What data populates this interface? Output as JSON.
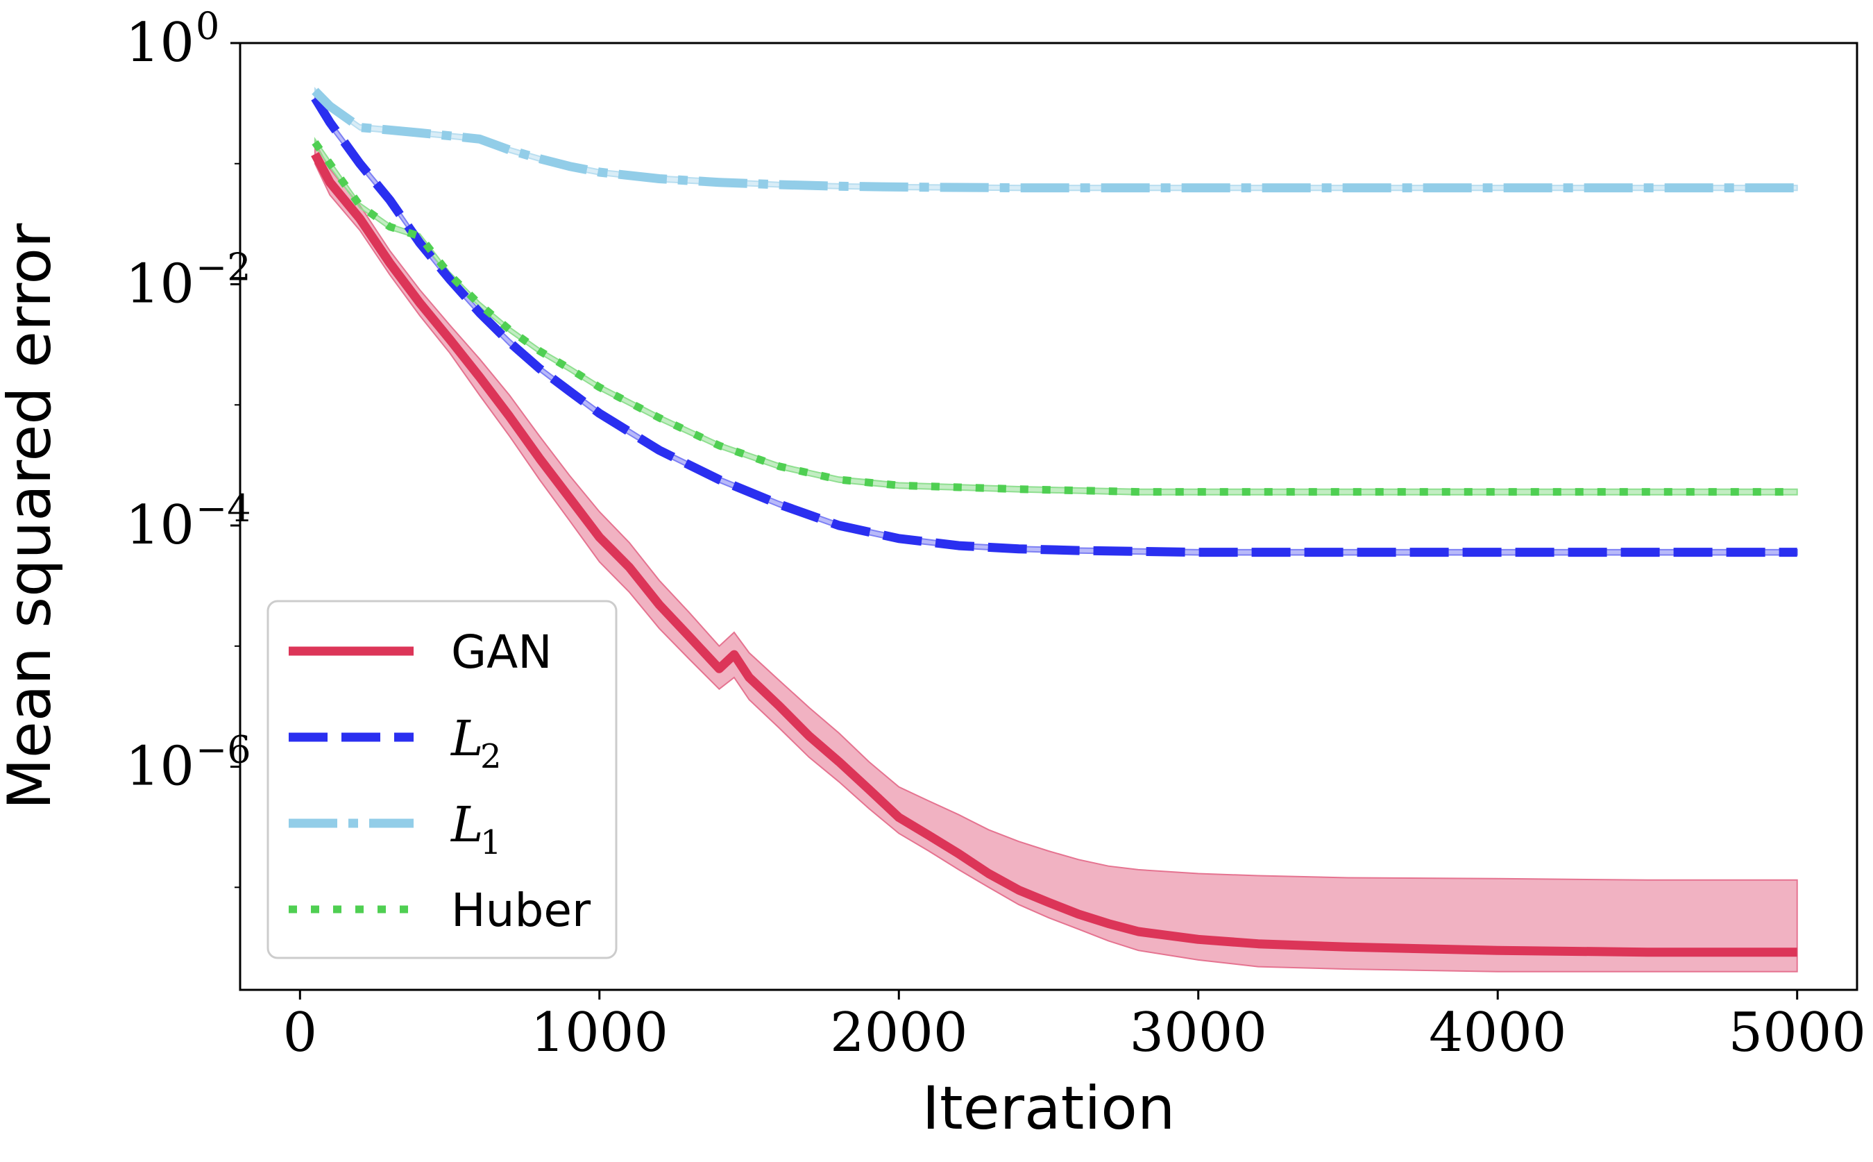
{
  "chart_data": {
    "type": "line",
    "title": "",
    "xlabel": "Iteration",
    "ylabel": "Mean squared error",
    "xlim": [
      -200,
      5200
    ],
    "ylim_log10": [
      -7.85,
      0
    ],
    "yscale": "log",
    "grid": false,
    "legend_position": "lower-left",
    "x_ticks": [
      "0",
      "1000",
      "2000",
      "3000",
      "4000",
      "5000"
    ],
    "x_tick_values": [
      0,
      1000,
      2000,
      3000,
      4000,
      5000
    ],
    "y_ticks": [
      {
        "base": "10",
        "exp": "0",
        "value": 1
      },
      {
        "base": "10",
        "exp": "−2",
        "value": 0.01
      },
      {
        "base": "10",
        "exp": "−4",
        "value": 0.0001
      },
      {
        "base": "10",
        "exp": "−6",
        "value": 1e-06
      }
    ],
    "series": [
      {
        "name": "GAN",
        "label_main": "GAN",
        "label_sub": "",
        "math": false,
        "color": "#dc3558",
        "band_color": "#e57390",
        "style": "solid",
        "x": [
          50,
          100,
          200,
          300,
          400,
          500,
          600,
          700,
          800,
          900,
          1000,
          1100,
          1200,
          1300,
          1400,
          1450,
          1500,
          1600,
          1700,
          1800,
          1900,
          2000,
          2100,
          2200,
          2300,
          2400,
          2500,
          2600,
          2700,
          2800,
          3000,
          3200,
          3500,
          4000,
          4500,
          5000
        ],
        "y": [
          0.12,
          0.07,
          0.035,
          0.015,
          0.007,
          0.0035,
          0.0017,
          0.0008,
          0.00036,
          0.00017,
          8e-05,
          4.5e-05,
          2.2e-05,
          1.2e-05,
          6.5e-06,
          8.5e-06,
          5.5e-06,
          3.2e-06,
          1.8e-06,
          1.1e-06,
          6.5e-07,
          3.8e-07,
          2.7e-07,
          1.9e-07,
          1.3e-07,
          9.5e-08,
          7.5e-08,
          6e-08,
          5e-08,
          4.3e-08,
          3.7e-08,
          3.4e-08,
          3.2e-08,
          3e-08,
          2.9e-08,
          2.9e-08
        ],
        "lower": [
          0.1,
          0.055,
          0.028,
          0.012,
          0.0055,
          0.0027,
          0.0012,
          0.00055,
          0.00024,
          0.00011,
          5e-05,
          2.8e-05,
          1.4e-05,
          7.8e-06,
          4.4e-06,
          5.5e-06,
          3.6e-06,
          2.1e-06,
          1.2e-06,
          7.5e-07,
          4.5e-07,
          2.8e-07,
          2e-07,
          1.4e-07,
          1e-07,
          7.2e-08,
          5.6e-08,
          4.5e-08,
          3.6e-08,
          3e-08,
          2.5e-08,
          2.2e-08,
          2.1e-08,
          2e-08,
          2e-08,
          2e-08
        ],
        "upper": [
          0.15,
          0.09,
          0.045,
          0.019,
          0.009,
          0.0046,
          0.0024,
          0.0012,
          0.00055,
          0.00026,
          0.00013,
          7.2e-05,
          3.5e-05,
          1.9e-05,
          1e-05,
          1.3e-05,
          8.8e-06,
          5.2e-06,
          3.1e-06,
          1.9e-06,
          1.1e-06,
          6.8e-07,
          5.2e-07,
          4e-07,
          3e-07,
          2.4e-07,
          2e-07,
          1.7e-07,
          1.5e-07,
          1.4e-07,
          1.3e-07,
          1.25e-07,
          1.2e-07,
          1.18e-07,
          1.15e-07,
          1.15e-07
        ]
      },
      {
        "name": "L2",
        "label_main": "L",
        "label_sub": "2",
        "math": true,
        "color": "#2a2ff0",
        "band_color": "#7d80f4",
        "style": "dashed",
        "x": [
          50,
          100,
          200,
          300,
          400,
          500,
          600,
          700,
          800,
          900,
          1000,
          1200,
          1400,
          1600,
          1800,
          2000,
          2200,
          2400,
          2600,
          3000,
          3500,
          4000,
          4500,
          5000
        ],
        "y": [
          0.35,
          0.22,
          0.1,
          0.05,
          0.022,
          0.011,
          0.0058,
          0.0033,
          0.002,
          0.0013,
          0.00085,
          0.00042,
          0.00024,
          0.00015,
          0.0001,
          7.8e-05,
          6.8e-05,
          6.4e-05,
          6.2e-05,
          6e-05,
          6e-05,
          6e-05,
          6e-05,
          6e-05
        ],
        "lower": [
          0.33,
          0.2,
          0.094,
          0.047,
          0.021,
          0.0104,
          0.0055,
          0.0031,
          0.0019,
          0.00123,
          0.0008,
          0.0004,
          0.000228,
          0.000143,
          9.5e-05,
          7.4e-05,
          6.5e-05,
          6.1e-05,
          5.9e-05,
          5.7e-05,
          5.7e-05,
          5.7e-05,
          5.7e-05,
          5.7e-05
        ],
        "upper": [
          0.37,
          0.23,
          0.106,
          0.053,
          0.023,
          0.0116,
          0.0061,
          0.0035,
          0.0021,
          0.00137,
          0.0009,
          0.00044,
          0.000252,
          0.000158,
          0.000105,
          8.2e-05,
          7.1e-05,
          6.7e-05,
          6.5e-05,
          6.3e-05,
          6.3e-05,
          6.3e-05,
          6.3e-05,
          6.3e-05
        ]
      },
      {
        "name": "L1",
        "label_main": "L",
        "label_sub": "1",
        "math": true,
        "color": "#92cde8",
        "band_color": "#b9def0",
        "style": "dashdot",
        "x": [
          50,
          100,
          200,
          300,
          400,
          500,
          600,
          700,
          800,
          900,
          1000,
          1200,
          1400,
          1600,
          1800,
          2000,
          2400,
          3000,
          3500,
          4000,
          4500,
          5000
        ],
        "y": [
          0.4,
          0.3,
          0.2,
          0.19,
          0.18,
          0.17,
          0.16,
          0.13,
          0.11,
          0.095,
          0.085,
          0.075,
          0.07,
          0.067,
          0.065,
          0.064,
          0.063,
          0.063,
          0.063,
          0.063,
          0.063,
          0.063
        ],
        "lower": [
          0.38,
          0.285,
          0.19,
          0.18,
          0.171,
          0.162,
          0.152,
          0.124,
          0.105,
          0.09,
          0.081,
          0.071,
          0.067,
          0.064,
          0.062,
          0.061,
          0.06,
          0.06,
          0.06,
          0.06,
          0.06,
          0.06
        ],
        "upper": [
          0.42,
          0.315,
          0.21,
          0.2,
          0.189,
          0.178,
          0.168,
          0.136,
          0.115,
          0.1,
          0.089,
          0.079,
          0.074,
          0.07,
          0.068,
          0.067,
          0.066,
          0.066,
          0.066,
          0.066,
          0.066,
          0.066
        ]
      },
      {
        "name": "Huber",
        "label_main": "Huber",
        "label_sub": "",
        "math": false,
        "color": "#4fcf52",
        "band_color": "#8fdf90",
        "style": "dotted",
        "x": [
          50,
          100,
          200,
          300,
          400,
          500,
          600,
          700,
          800,
          900,
          1000,
          1200,
          1400,
          1600,
          1800,
          2000,
          2400,
          2800,
          3200,
          3600,
          4000,
          4500,
          5000
        ],
        "y": [
          0.15,
          0.1,
          0.045,
          0.03,
          0.025,
          0.012,
          0.0068,
          0.0042,
          0.0028,
          0.002,
          0.0014,
          0.00078,
          0.00046,
          0.00031,
          0.00024,
          0.000215,
          0.0002,
          0.00019,
          0.00019,
          0.00019,
          0.00019,
          0.00019,
          0.00019
        ],
        "lower": [
          0.14,
          0.094,
          0.043,
          0.0285,
          0.0238,
          0.0114,
          0.0065,
          0.004,
          0.00267,
          0.0019,
          0.00133,
          0.00074,
          0.000437,
          0.000295,
          0.000228,
          0.000204,
          0.00019,
          0.00018,
          0.00018,
          0.00018,
          0.00018,
          0.00018,
          0.00018
        ],
        "upper": [
          0.16,
          0.106,
          0.047,
          0.0315,
          0.0262,
          0.0126,
          0.0071,
          0.0044,
          0.00293,
          0.0021,
          0.00147,
          0.00082,
          0.000483,
          0.000326,
          0.000252,
          0.000226,
          0.00021,
          0.0002,
          0.0002,
          0.0002,
          0.0002,
          0.0002,
          0.0002
        ]
      }
    ]
  }
}
